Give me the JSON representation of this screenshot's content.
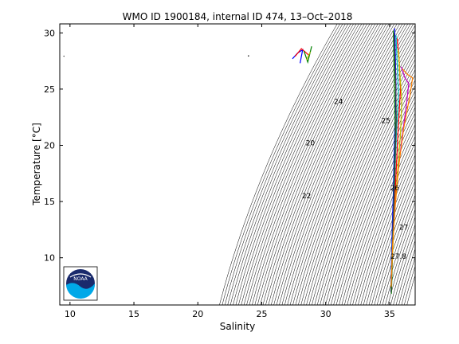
{
  "chart_data": {
    "type": "scatter",
    "title": "WMO ID 1900184, internal ID 474, 13–Oct–2018",
    "xlabel": "Salinity",
    "ylabel": "Temperature [°C]",
    "xlim": [
      9.2,
      37
    ],
    "ylim": [
      5.8,
      30.8
    ],
    "xticks": [
      10,
      15,
      20,
      25,
      30,
      35
    ],
    "yticks": [
      10,
      15,
      20,
      25,
      30
    ],
    "grid": false,
    "density_contour_labels": [
      {
        "text": "20",
        "s": 28.8,
        "t": 20.0
      },
      {
        "text": "22",
        "s": 28.5,
        "t": 15.3
      },
      {
        "text": "24",
        "s": 31.0,
        "t": 23.7
      },
      {
        "text": "25",
        "s": 34.7,
        "t": 22.0
      },
      {
        "text": "26",
        "s": 35.4,
        "t": 16.0
      },
      {
        "text": "27",
        "s": 36.1,
        "t": 12.5
      },
      {
        "text": "27.8",
        "s": 35.7,
        "t": 9.9
      }
    ],
    "profiles": [
      {
        "color": "#0000ff",
        "salinity": [
          35.4,
          35.45,
          35.5,
          35.42,
          35.35,
          35.3,
          35.22,
          35.15,
          35.1
        ],
        "temperature": [
          30.4,
          28.0,
          25.0,
          22.0,
          19.0,
          16.0,
          13.0,
          10.0,
          7.0
        ]
      },
      {
        "color": "#ff0000",
        "salinity": [
          35.6,
          35.75,
          35.85,
          35.7,
          35.55,
          35.4,
          35.28,
          35.18,
          35.12
        ],
        "temperature": [
          29.5,
          27.5,
          25.0,
          22.0,
          18.5,
          15.0,
          12.0,
          9.5,
          7.2
        ]
      },
      {
        "color": "#008000",
        "salinity": [
          35.3,
          35.35,
          35.4,
          35.45,
          35.38,
          35.32,
          35.25,
          35.2,
          35.14
        ],
        "temperature": [
          30.2,
          27.0,
          24.0,
          21.0,
          18.0,
          15.0,
          12.0,
          9.0,
          6.8
        ]
      },
      {
        "color": "#00bfbf",
        "salinity": [
          35.5,
          35.6,
          35.7,
          35.55,
          35.45,
          35.35,
          35.25,
          35.17,
          35.1
        ],
        "temperature": [
          29.8,
          27.2,
          24.5,
          21.5,
          18.5,
          15.5,
          12.5,
          9.8,
          7.0
        ]
      },
      {
        "color": "#bf00bf",
        "salinity": [
          35.9,
          36.2,
          36.5,
          36.3,
          35.95,
          35.6,
          35.35,
          35.22,
          35.13
        ],
        "temperature": [
          27.0,
          26.0,
          25.5,
          23.5,
          20.5,
          17.0,
          13.5,
          10.5,
          7.5
        ]
      },
      {
        "color": "#bfbf00",
        "salinity": [
          35.7,
          35.8,
          35.95,
          35.85,
          35.65,
          35.45,
          35.3,
          35.2,
          35.12
        ],
        "temperature": [
          28.5,
          26.5,
          24.0,
          21.0,
          18.0,
          15.0,
          12.0,
          9.5,
          7.1
        ]
      },
      {
        "color": "#404040",
        "salinity": [
          35.35,
          35.4,
          35.48,
          35.52,
          35.45,
          35.38,
          35.27,
          35.19,
          35.11
        ],
        "temperature": [
          30.0,
          27.8,
          25.2,
          22.4,
          19.4,
          16.2,
          13.0,
          10.0,
          6.9
        ]
      },
      {
        "color": "#ff8000",
        "salinity": [
          36.0,
          36.4,
          36.8,
          36.6,
          36.1,
          35.7,
          35.4,
          35.22,
          35.12
        ],
        "temperature": [
          26.8,
          26.3,
          26.0,
          24.5,
          21.5,
          18.0,
          14.0,
          10.8,
          7.4
        ]
      },
      {
        "color": "#0000ff",
        "salinity": [
          27.4,
          27.8,
          28.2,
          28.0
        ],
        "temperature": [
          27.7,
          28.2,
          28.5,
          27.3
        ]
      },
      {
        "color": "#ff0000",
        "salinity": [
          27.6,
          28.1,
          28.7
        ],
        "temperature": [
          27.9,
          28.6,
          28.0
        ]
      },
      {
        "color": "#008000",
        "salinity": [
          28.3,
          28.6,
          28.9
        ],
        "temperature": [
          28.4,
          27.4,
          28.8
        ]
      },
      {
        "color": "#bfbf00",
        "salinity": [
          28.5,
          28.8
        ],
        "temperature": [
          27.6,
          28.3
        ]
      },
      {
        "color": "#000000",
        "salinity": [
          23.95,
          23.98
        ],
        "temperature": [
          27.9,
          28.0
        ]
      },
      {
        "color": "#000000",
        "salinity": [
          9.5,
          9.55
        ],
        "temperature": [
          27.9,
          27.95
        ]
      }
    ]
  },
  "logo": {
    "label": "NOAA",
    "colors": {
      "ring": "#ffffff",
      "top": "#1a2a6c",
      "wave": "#00a8e8"
    }
  }
}
